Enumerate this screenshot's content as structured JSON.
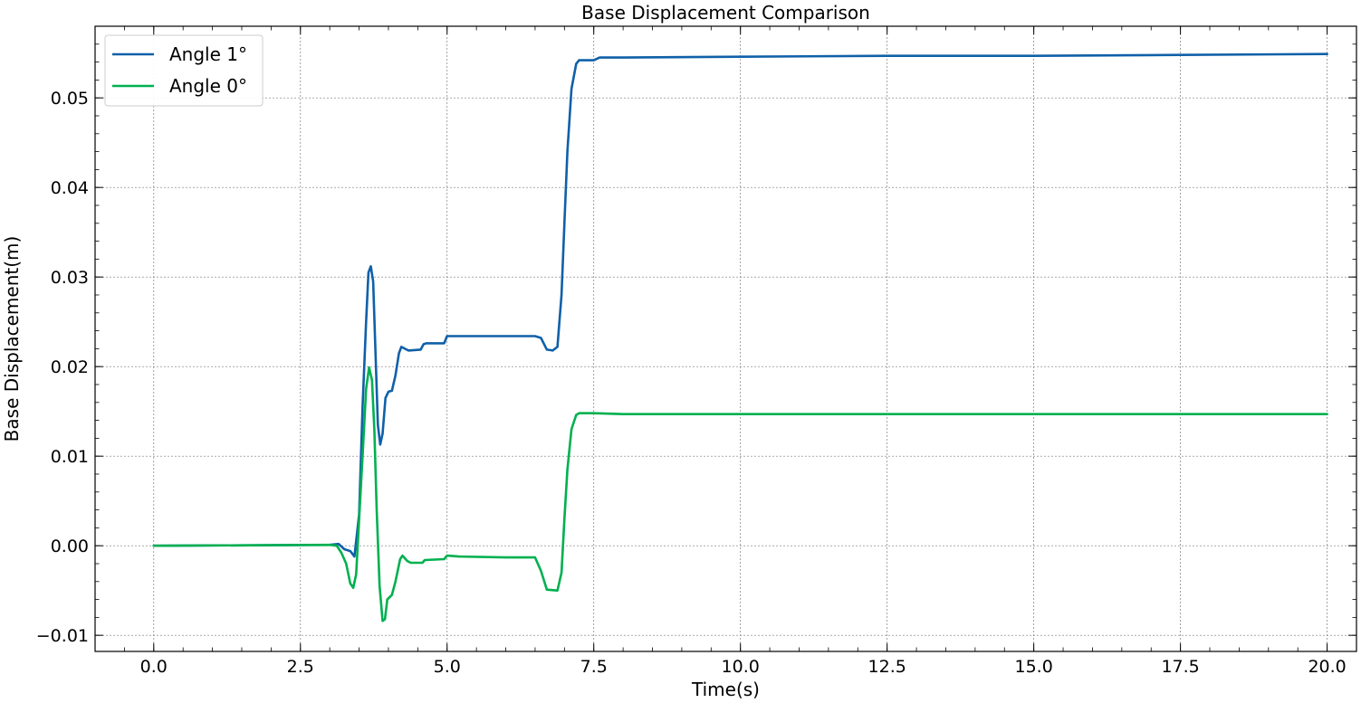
{
  "chart_data": {
    "type": "line",
    "title": "Base Displacement Comparison",
    "xlabel": "Time(s)",
    "ylabel": "Base Displacement(m)",
    "xlim": [
      -1.0,
      20.5
    ],
    "ylim": [
      -0.0118,
      0.058
    ],
    "xticks": [
      0.0,
      2.5,
      5.0,
      7.5,
      10.0,
      12.5,
      15.0,
      17.5,
      20.0
    ],
    "xtick_labels": [
      "0.0",
      "2.5",
      "5.0",
      "7.5",
      "10.0",
      "12.5",
      "15.0",
      "17.5",
      "20.0"
    ],
    "yticks": [
      -0.01,
      0.0,
      0.01,
      0.02,
      0.03,
      0.04,
      0.05
    ],
    "ytick_labels": [
      "−0.01",
      "0.00",
      "0.01",
      "0.02",
      "0.03",
      "0.04",
      "0.05"
    ],
    "grid": true,
    "legend_position": "top-left",
    "series": [
      {
        "name": "Angle 1°",
        "color": "#1060A8",
        "points": [
          [
            0.0,
            0.0
          ],
          [
            3.0,
            0.0001
          ],
          [
            3.15,
            0.0002
          ],
          [
            3.25,
            -0.0004
          ],
          [
            3.35,
            -0.0006
          ],
          [
            3.42,
            -0.0012
          ],
          [
            3.5,
            0.0035
          ],
          [
            3.56,
            0.0155
          ],
          [
            3.62,
            0.025
          ],
          [
            3.66,
            0.0305
          ],
          [
            3.7,
            0.0312
          ],
          [
            3.74,
            0.0295
          ],
          [
            3.78,
            0.0215
          ],
          [
            3.82,
            0.0135
          ],
          [
            3.86,
            0.0113
          ],
          [
            3.9,
            0.0125
          ],
          [
            3.95,
            0.0165
          ],
          [
            4.0,
            0.0172
          ],
          [
            4.06,
            0.0173
          ],
          [
            4.12,
            0.019
          ],
          [
            4.18,
            0.0215
          ],
          [
            4.22,
            0.0222
          ],
          [
            4.28,
            0.022
          ],
          [
            4.34,
            0.0218
          ],
          [
            4.55,
            0.0219
          ],
          [
            4.6,
            0.0225
          ],
          [
            4.65,
            0.0226
          ],
          [
            4.95,
            0.0226
          ],
          [
            5.0,
            0.0234
          ],
          [
            5.1,
            0.0234
          ],
          [
            6.0,
            0.0234
          ],
          [
            6.5,
            0.0234
          ],
          [
            6.6,
            0.0232
          ],
          [
            6.7,
            0.0219
          ],
          [
            6.8,
            0.0218
          ],
          [
            6.88,
            0.0222
          ],
          [
            6.95,
            0.028
          ],
          [
            7.0,
            0.036
          ],
          [
            7.05,
            0.044
          ],
          [
            7.12,
            0.051
          ],
          [
            7.2,
            0.0538
          ],
          [
            7.25,
            0.0542
          ],
          [
            7.5,
            0.0542
          ],
          [
            7.6,
            0.0545
          ],
          [
            8.0,
            0.0545
          ],
          [
            10.0,
            0.0546
          ],
          [
            12.5,
            0.0547
          ],
          [
            15.0,
            0.0547
          ],
          [
            17.5,
            0.0548
          ],
          [
            20.0,
            0.0549
          ]
        ]
      },
      {
        "name": "Angle 0°",
        "color": "#00B050",
        "points": [
          [
            0.0,
            0.0
          ],
          [
            3.0,
            0.0001
          ],
          [
            3.12,
            0.0
          ],
          [
            3.2,
            -0.0008
          ],
          [
            3.28,
            -0.002
          ],
          [
            3.35,
            -0.0042
          ],
          [
            3.4,
            -0.0047
          ],
          [
            3.45,
            -0.0032
          ],
          [
            3.5,
            0.003
          ],
          [
            3.56,
            0.01
          ],
          [
            3.62,
            0.0175
          ],
          [
            3.67,
            0.0199
          ],
          [
            3.72,
            0.0185
          ],
          [
            3.76,
            0.013
          ],
          [
            3.8,
            0.004
          ],
          [
            3.85,
            -0.0045
          ],
          [
            3.9,
            -0.0084
          ],
          [
            3.94,
            -0.0082
          ],
          [
            3.98,
            -0.006
          ],
          [
            4.06,
            -0.0055
          ],
          [
            4.12,
            -0.004
          ],
          [
            4.2,
            -0.0015
          ],
          [
            4.24,
            -0.0011
          ],
          [
            4.32,
            -0.0017
          ],
          [
            4.38,
            -0.0019
          ],
          [
            4.58,
            -0.0019
          ],
          [
            4.62,
            -0.0016
          ],
          [
            4.95,
            -0.0015
          ],
          [
            5.0,
            -0.0011
          ],
          [
            5.2,
            -0.0012
          ],
          [
            6.0,
            -0.0013
          ],
          [
            6.5,
            -0.0013
          ],
          [
            6.6,
            -0.0028
          ],
          [
            6.7,
            -0.0049
          ],
          [
            6.88,
            -0.005
          ],
          [
            6.95,
            -0.003
          ],
          [
            7.0,
            0.003
          ],
          [
            7.05,
            0.0085
          ],
          [
            7.12,
            0.013
          ],
          [
            7.2,
            0.0146
          ],
          [
            7.25,
            0.0148
          ],
          [
            7.5,
            0.0148
          ],
          [
            8.0,
            0.0147
          ],
          [
            10.0,
            0.0147
          ],
          [
            15.0,
            0.0147
          ],
          [
            20.0,
            0.0147
          ]
        ]
      }
    ]
  }
}
